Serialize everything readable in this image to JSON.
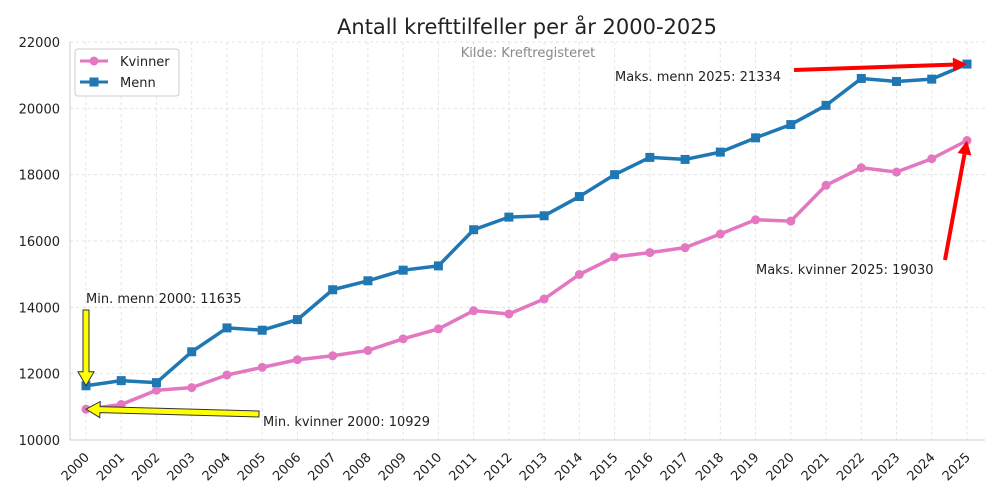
{
  "chart_data": {
    "type": "line",
    "title": "Antall krefttilfeller per år 2000-2025",
    "subtitle": "Kilde: Kreftregisteret",
    "xlabel": "",
    "ylabel": "",
    "ylim": [
      10000,
      22000
    ],
    "yticks": [
      10000,
      12000,
      14000,
      16000,
      18000,
      20000,
      22000
    ],
    "grid": true,
    "legend_position": "top-left",
    "categories": [
      "2000",
      "2001",
      "2002",
      "2003",
      "2004",
      "2005",
      "2006",
      "2007",
      "2008",
      "2009",
      "2010",
      "2011",
      "2012",
      "2013",
      "2014",
      "2015",
      "2016",
      "2017",
      "2018",
      "2019",
      "2020",
      "2021",
      "2022",
      "2023",
      "2024",
      "2025"
    ],
    "series": [
      {
        "name": "Kvinner",
        "color": "#e377c2",
        "marker": "circle",
        "values": [
          10929,
          11070,
          11500,
          11580,
          11960,
          12190,
          12420,
          12540,
          12700,
          13050,
          13350,
          13900,
          13800,
          14250,
          14990,
          15520,
          15650,
          15800,
          16210,
          16640,
          16600,
          17680,
          18210,
          18080,
          18480,
          19030
        ]
      },
      {
        "name": "Menn",
        "color": "#1f77b4",
        "marker": "square",
        "values": [
          11635,
          11790,
          11730,
          12660,
          13380,
          13310,
          13630,
          14530,
          14800,
          15120,
          15250,
          16340,
          16720,
          16760,
          17340,
          18000,
          18520,
          18460,
          18680,
          19110,
          19510,
          20090,
          20900,
          20810,
          20880,
          21334
        ]
      }
    ],
    "annotations": [
      {
        "text": "Maks. menn 2025: 21334",
        "x": "2025",
        "y": 21334,
        "arrow_color": "#ff0000",
        "text_x": "2016",
        "text_y": 21150
      },
      {
        "text": "Maks. kvinner 2025: 19030",
        "x": "2025",
        "y": 19030,
        "arrow_color": "#ff0000",
        "text_x": "2024.5",
        "text_y": 15400
      },
      {
        "text": "Min. menn 2000: 11635",
        "x": "2000",
        "y": 11635,
        "arrow_color": "#ffff00",
        "text_x": "2000",
        "text_y": 14000
      },
      {
        "text": "Min. kvinner 2000: 10929",
        "x": "2000",
        "y": 10929,
        "arrow_color": "#ffff00",
        "text_x": "2005",
        "text_y": 10750
      }
    ]
  }
}
